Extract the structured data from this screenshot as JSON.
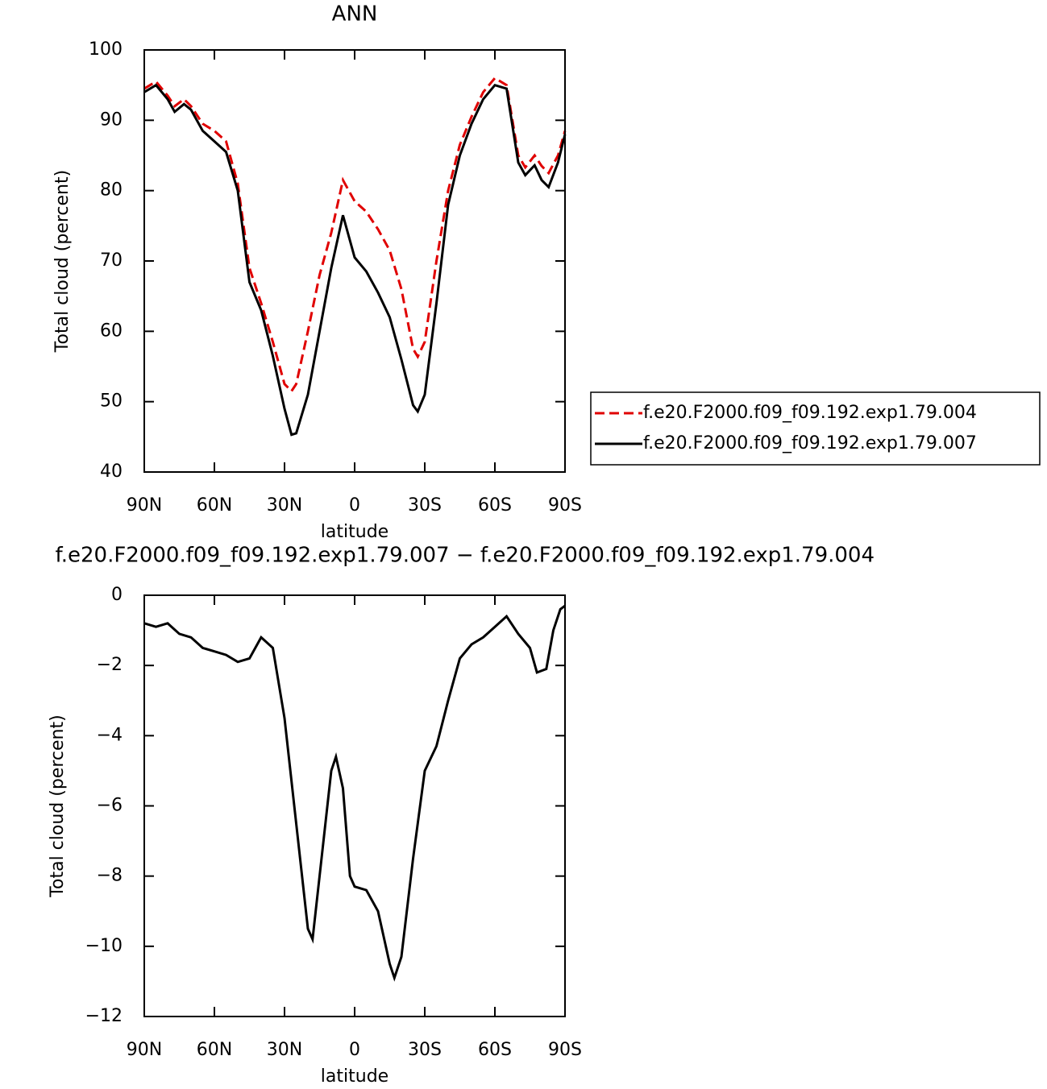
{
  "chart_data": [
    {
      "type": "line",
      "title": "ANN",
      "xlabel": "latitude",
      "ylabel": "Total cloud (percent)",
      "x": [
        90,
        85,
        80,
        77,
        73,
        70,
        65,
        60,
        55,
        50,
        45,
        40,
        35,
        30,
        27,
        25,
        20,
        15,
        10,
        5,
        0,
        -5,
        -10,
        -15,
        -20,
        -25,
        -27,
        -30,
        -35,
        -40,
        -45,
        -50,
        -55,
        -60,
        -65,
        -70,
        -73,
        -77,
        -80,
        -83,
        -87,
        -90
      ],
      "xlim": [
        90,
        -90
      ],
      "xticks": [
        {
          "value": 90,
          "label": "90N"
        },
        {
          "value": 60,
          "label": "60N"
        },
        {
          "value": 30,
          "label": "30N"
        },
        0,
        {
          "value": -30,
          "label": "30S"
        },
        {
          "value": -60,
          "label": "60S"
        },
        {
          "value": -90,
          "label": "90S"
        }
      ],
      "ylim": [
        40,
        100
      ],
      "yticks": [
        40,
        50,
        60,
        70,
        80,
        90,
        100
      ],
      "legend": "right",
      "series": [
        {
          "name": "f.e20.F2000.f09_f09.192.exp1.79.004",
          "color": "#e00000",
          "dash": true,
          "values": [
            94.5,
            95.5,
            93.5,
            92,
            93,
            92,
            89.5,
            88.5,
            87,
            81,
            69,
            64,
            58.5,
            52.5,
            51.5,
            52.5,
            60,
            68,
            74,
            81.5,
            78.5,
            77,
            74.5,
            71.5,
            66,
            57.5,
            56.4,
            58.5,
            70,
            80,
            86.5,
            90.5,
            94,
            96,
            95,
            85,
            83.3,
            85,
            83.5,
            82.5,
            85,
            88.5
          ]
        },
        {
          "name": "f.e20.F2000.f09_f09.192.exp1.79.007",
          "color": "#000000",
          "dash": false,
          "values": [
            94,
            95,
            93,
            91.2,
            92.3,
            91.5,
            88.5,
            87,
            85.5,
            80,
            67,
            63,
            56.5,
            49,
            45.3,
            45.5,
            51,
            60,
            69,
            76.5,
            70.5,
            68.5,
            65.5,
            62,
            56,
            49.5,
            48.6,
            51,
            64,
            78,
            85,
            89.5,
            93,
            95,
            94.5,
            84,
            82.2,
            83.6,
            81.5,
            80.5,
            84,
            88
          ]
        }
      ]
    },
    {
      "type": "line",
      "title": "f.e20.F2000.f09_f09.192.exp1.79.007 − f.e20.F2000.f09_f09.192.exp1.79.004",
      "xlabel": "latitude",
      "ylabel": "Total cloud (percent)",
      "x": [
        90,
        85,
        80,
        75,
        70,
        65,
        60,
        55,
        50,
        45,
        40,
        35,
        30,
        25,
        20,
        18,
        15,
        10,
        8,
        5,
        2,
        0,
        -5,
        -10,
        -15,
        -17,
        -20,
        -25,
        -30,
        -35,
        -40,
        -45,
        -50,
        -55,
        -60,
        -65,
        -70,
        -75,
        -78,
        -82,
        -85,
        -88,
        -90
      ],
      "xlim": [
        90,
        -90
      ],
      "xticks": [
        {
          "value": 90,
          "label": "90N"
        },
        {
          "value": 60,
          "label": "60N"
        },
        {
          "value": 30,
          "label": "30N"
        },
        0,
        {
          "value": -30,
          "label": "30S"
        },
        {
          "value": -60,
          "label": "60S"
        },
        {
          "value": -90,
          "label": "90S"
        }
      ],
      "ylim": [
        -12,
        0
      ],
      "yticks": [
        {
          "value": -12,
          "label": "−12"
        },
        {
          "value": -10,
          "label": "−10"
        },
        {
          "value": -8,
          "label": "−8"
        },
        {
          "value": -6,
          "label": "−6"
        },
        {
          "value": -4,
          "label": "−4"
        },
        {
          "value": -2,
          "label": "−2"
        },
        0
      ],
      "series": [
        {
          "color": "#000000",
          "dash": false,
          "values": [
            -0.8,
            -0.9,
            -0.8,
            -1.1,
            -1.2,
            -1.5,
            -1.6,
            -1.7,
            -1.9,
            -1.8,
            -1.2,
            -1.5,
            -3.5,
            -6.5,
            -9.5,
            -9.8,
            -8,
            -5,
            -4.6,
            -5.5,
            -8,
            -8.3,
            -8.4,
            -9,
            -10.5,
            -10.9,
            -10.3,
            -7.5,
            -5,
            -4.3,
            -3,
            -1.8,
            -1.4,
            -1.2,
            -0.9,
            -0.6,
            -1.1,
            -1.5,
            -2.2,
            -2.1,
            -1,
            -0.4,
            -0.3
          ]
        }
      ]
    }
  ]
}
